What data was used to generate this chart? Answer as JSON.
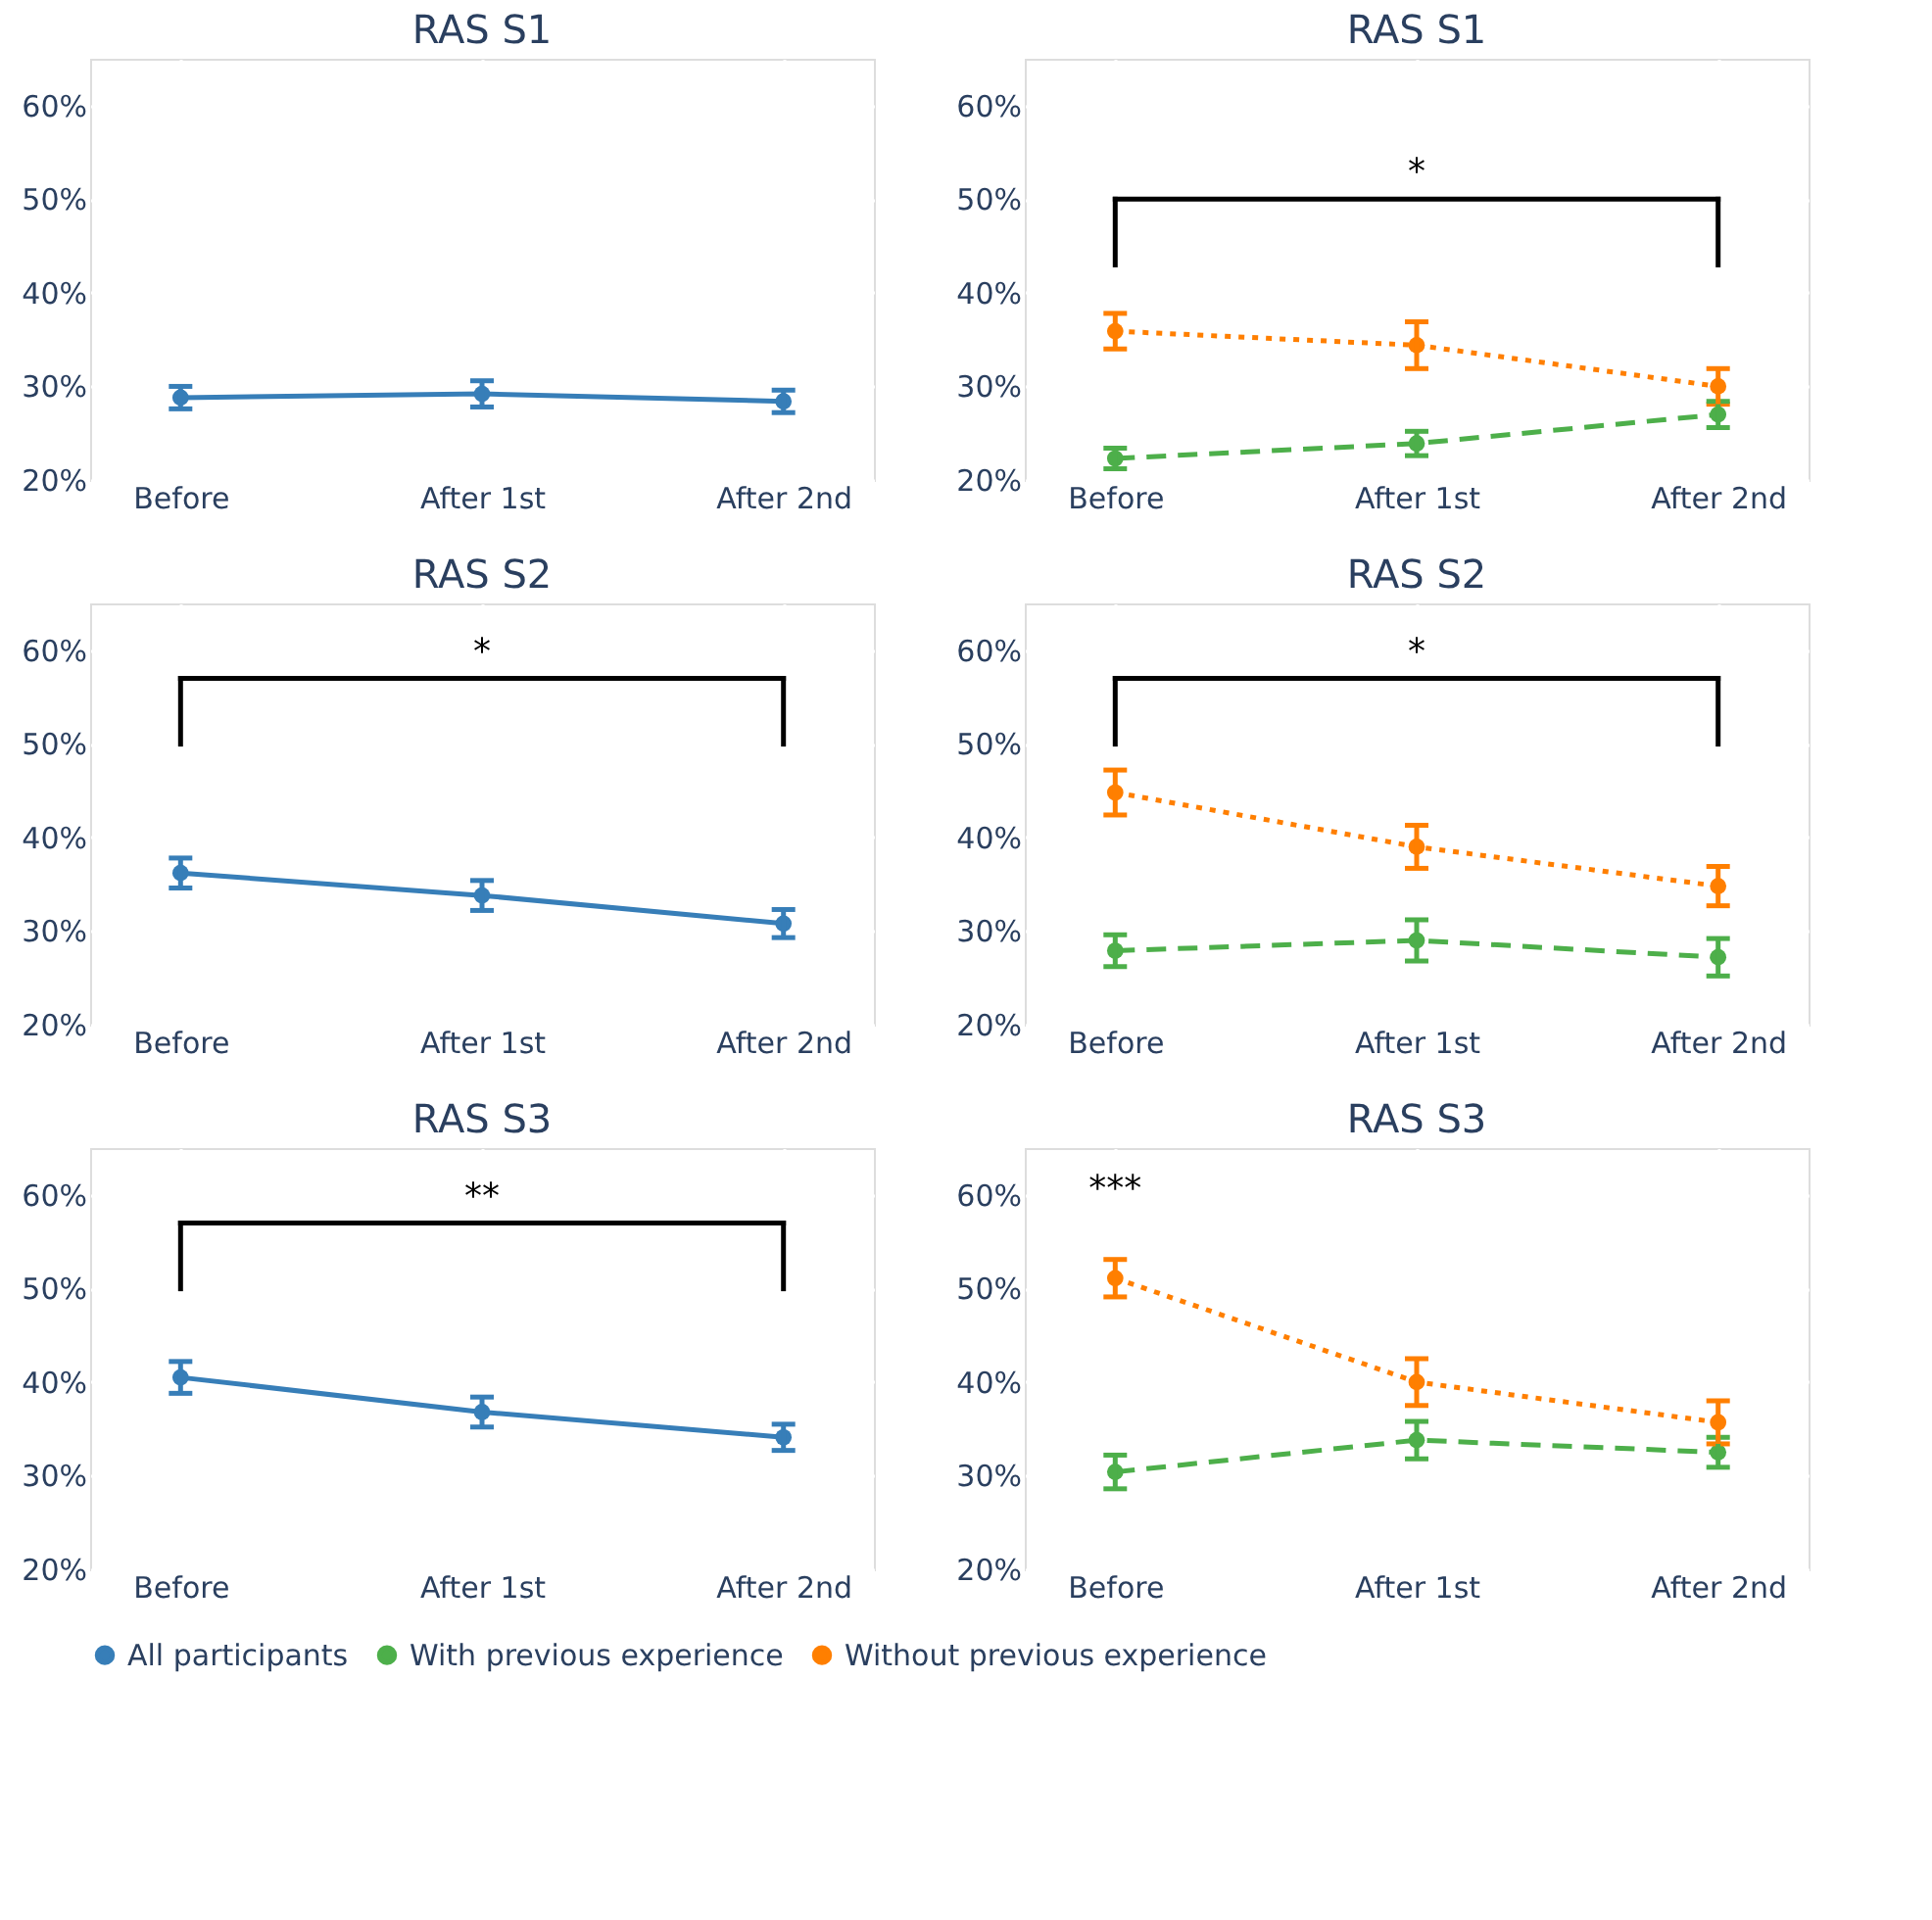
{
  "chart_data": [
    {
      "type": "line",
      "title": "RAS S1",
      "categories": [
        "Before",
        "After 1st",
        "After 2nd"
      ],
      "ylim": [
        20,
        65
      ],
      "yticks": [
        {
          "value": 20,
          "label": "20%"
        },
        {
          "value": 30,
          "label": "30%"
        },
        {
          "value": 40,
          "label": "40%"
        },
        {
          "value": 50,
          "label": "50%"
        },
        {
          "value": 60,
          "label": "60%"
        }
      ],
      "grid": true,
      "marker": "circle",
      "legend": "bottom",
      "series": [
        {
          "name": "All participants",
          "color": "#377eb8",
          "line_style": "solid",
          "values": [
            28.8,
            29.2,
            28.4
          ],
          "errors": [
            1.2,
            1.4,
            1.2
          ]
        }
      ]
    },
    {
      "type": "line",
      "title": "RAS S1",
      "categories": [
        "Before",
        "After 1st",
        "After 2nd"
      ],
      "ylim": [
        20,
        65
      ],
      "yticks": [
        {
          "value": 20,
          "label": "20%"
        },
        {
          "value": 30,
          "label": "30%"
        },
        {
          "value": 40,
          "label": "40%"
        },
        {
          "value": 50,
          "label": "50%"
        },
        {
          "value": 60,
          "label": "60%"
        }
      ],
      "grid": true,
      "marker": "circle",
      "legend": "bottom",
      "annotations": [
        "*"
      ],
      "series": [
        {
          "name": "With previous experience",
          "color": "#4daf4a",
          "line_style": "dashed",
          "values": [
            22.3,
            23.9,
            27.0
          ],
          "errors": [
            1.1,
            1.3,
            1.4
          ]
        },
        {
          "name": "Without previous experience",
          "color": "#ff7f00",
          "line_style": "dotted",
          "values": [
            35.9,
            34.4,
            30.0
          ],
          "errors": [
            1.9,
            2.5,
            1.9
          ]
        }
      ]
    },
    {
      "type": "line",
      "title": "RAS S2",
      "categories": [
        "Before",
        "After 1st",
        "After 2nd"
      ],
      "ylim": [
        20,
        65
      ],
      "yticks": [
        {
          "value": 20,
          "label": "20%"
        },
        {
          "value": 30,
          "label": "30%"
        },
        {
          "value": 40,
          "label": "40%"
        },
        {
          "value": 50,
          "label": "50%"
        },
        {
          "value": 60,
          "label": "60%"
        }
      ],
      "grid": true,
      "marker": "circle",
      "legend": "bottom",
      "annotations": [
        "*"
      ],
      "series": [
        {
          "name": "All participants",
          "color": "#377eb8",
          "line_style": "solid",
          "values": [
            36.2,
            33.8,
            30.8
          ],
          "errors": [
            1.6,
            1.6,
            1.5
          ]
        }
      ]
    },
    {
      "type": "line",
      "title": "RAS S2",
      "categories": [
        "Before",
        "After 1st",
        "After 2nd"
      ],
      "ylim": [
        20,
        65
      ],
      "yticks": [
        {
          "value": 20,
          "label": "20%"
        },
        {
          "value": 30,
          "label": "30%"
        },
        {
          "value": 40,
          "label": "40%"
        },
        {
          "value": 50,
          "label": "50%"
        },
        {
          "value": 60,
          "label": "60%"
        }
      ],
      "grid": true,
      "marker": "circle",
      "legend": "bottom",
      "annotations": [
        "*"
      ],
      "series": [
        {
          "name": "With previous experience",
          "color": "#4daf4a",
          "line_style": "dashed",
          "values": [
            27.9,
            29.0,
            27.2
          ],
          "errors": [
            1.7,
            2.2,
            2.0
          ]
        },
        {
          "name": "Without previous experience",
          "color": "#ff7f00",
          "line_style": "dotted",
          "values": [
            44.8,
            39.0,
            34.8
          ],
          "errors": [
            2.4,
            2.3,
            2.1
          ]
        }
      ]
    },
    {
      "type": "line",
      "title": "RAS S3",
      "categories": [
        "Before",
        "After 1st",
        "After 2nd"
      ],
      "ylim": [
        20,
        65
      ],
      "yticks": [
        {
          "value": 20,
          "label": "20%"
        },
        {
          "value": 30,
          "label": "30%"
        },
        {
          "value": 40,
          "label": "40%"
        },
        {
          "value": 50,
          "label": "50%"
        },
        {
          "value": 60,
          "label": "60%"
        }
      ],
      "grid": true,
      "marker": "circle",
      "legend": "bottom",
      "annotations": [
        "**"
      ],
      "series": [
        {
          "name": "All participants",
          "color": "#377eb8",
          "line_style": "solid",
          "values": [
            40.5,
            36.8,
            34.1
          ],
          "errors": [
            1.7,
            1.6,
            1.4
          ]
        }
      ]
    },
    {
      "type": "line",
      "title": "RAS S3",
      "categories": [
        "Before",
        "After 1st",
        "After 2nd"
      ],
      "ylim": [
        20,
        65
      ],
      "yticks": [
        {
          "value": 20,
          "label": "20%"
        },
        {
          "value": 30,
          "label": "30%"
        },
        {
          "value": 40,
          "label": "40%"
        },
        {
          "value": 50,
          "label": "50%"
        },
        {
          "value": 60,
          "label": "60%"
        }
      ],
      "grid": true,
      "marker": "circle",
      "legend": "bottom",
      "annotations": [
        "***"
      ],
      "series": [
        {
          "name": "With previous experience",
          "color": "#4daf4a",
          "line_style": "dashed",
          "values": [
            30.4,
            33.8,
            32.5
          ],
          "errors": [
            1.8,
            2.0,
            1.6
          ]
        },
        {
          "name": "Without previous experience",
          "color": "#ff7f00",
          "line_style": "dotted",
          "values": [
            51.1,
            40.0,
            35.7
          ],
          "errors": [
            2.0,
            2.5,
            2.3
          ]
        }
      ]
    }
  ]
}
